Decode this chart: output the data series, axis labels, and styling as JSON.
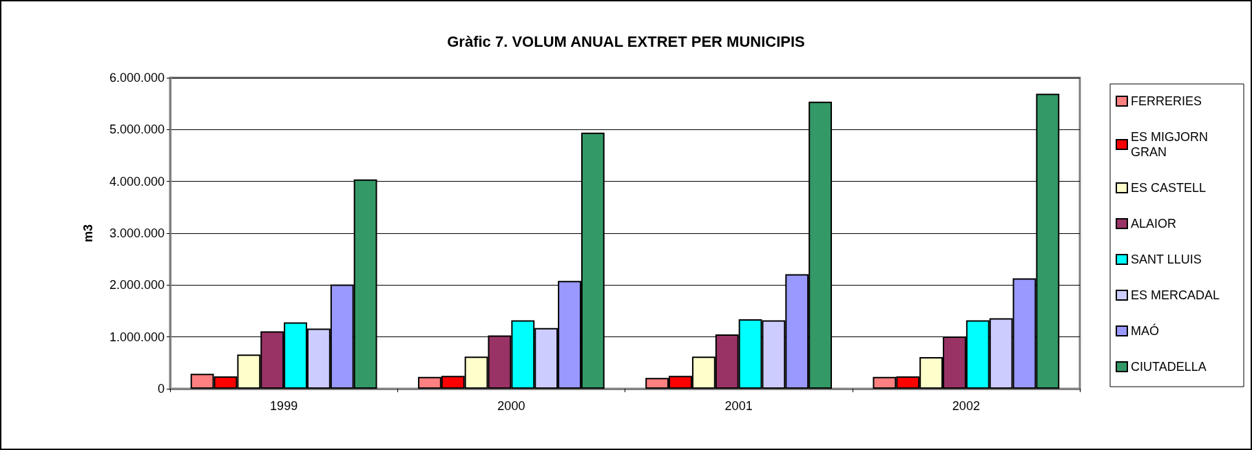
{
  "chart_data": {
    "type": "bar",
    "title": "Gràfic 7. VOLUM ANUAL EXTRET PER MUNICIPIS",
    "ylabel": "m3",
    "categories": [
      "1999",
      "2000",
      "2001",
      "2002"
    ],
    "series": [
      {
        "name": "FERRERIES",
        "color": "#ff8080",
        "values": [
          290000,
          230000,
          210000,
          230000
        ]
      },
      {
        "name": "ES MIGJORN GRAN",
        "color": "#ff0000",
        "values": [
          240000,
          250000,
          250000,
          240000
        ]
      },
      {
        "name": "ES CASTELL",
        "color": "#ffffcc",
        "values": [
          660000,
          620000,
          620000,
          610000
        ]
      },
      {
        "name": "ALAIOR",
        "color": "#993366",
        "values": [
          1110000,
          1030000,
          1050000,
          1010000
        ]
      },
      {
        "name": "SANT LLUIS",
        "color": "#00ffff",
        "values": [
          1280000,
          1320000,
          1340000,
          1320000
        ]
      },
      {
        "name": "ES MERCADAL",
        "color": "#ccccff",
        "values": [
          1160000,
          1170000,
          1320000,
          1360000
        ]
      },
      {
        "name": "MAÓ",
        "color": "#9999ff",
        "values": [
          2010000,
          2080000,
          2210000,
          2130000
        ]
      },
      {
        "name": "CIUTADELLA",
        "color": "#339966",
        "values": [
          4040000,
          4940000,
          5540000,
          5690000
        ]
      }
    ],
    "ylim": [
      0,
      6000000
    ],
    "yticks": [
      {
        "value": 0,
        "label": "0"
      },
      {
        "value": 1000000,
        "label": "1.000.000"
      },
      {
        "value": 2000000,
        "label": "2.000.000"
      },
      {
        "value": 3000000,
        "label": "3.000.000"
      },
      {
        "value": 4000000,
        "label": "4.000.000"
      },
      {
        "value": 5000000,
        "label": "5.000.000"
      },
      {
        "value": 6000000,
        "label": "6.000.000"
      }
    ],
    "grid": "y",
    "legend": "right"
  }
}
